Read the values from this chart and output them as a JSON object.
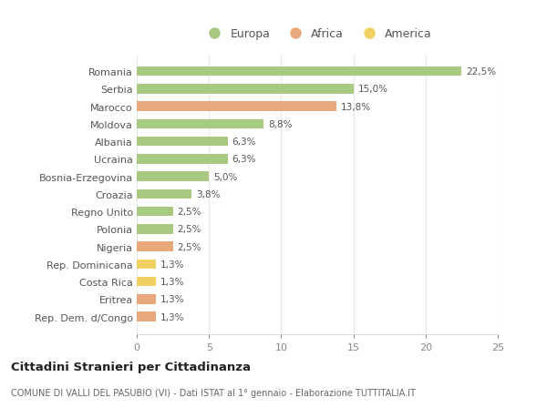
{
  "countries": [
    "Romania",
    "Serbia",
    "Marocco",
    "Moldova",
    "Albania",
    "Ucraina",
    "Bosnia-Erzegovina",
    "Croazia",
    "Regno Unito",
    "Polonia",
    "Nigeria",
    "Rep. Dominicana",
    "Costa Rica",
    "Eritrea",
    "Rep. Dem. d/Congo"
  ],
  "values": [
    22.5,
    15.0,
    13.8,
    8.8,
    6.3,
    6.3,
    5.0,
    3.8,
    2.5,
    2.5,
    2.5,
    1.3,
    1.3,
    1.3,
    1.3
  ],
  "labels": [
    "22,5%",
    "15,0%",
    "13,8%",
    "8,8%",
    "6,3%",
    "6,3%",
    "5,0%",
    "3,8%",
    "2,5%",
    "2,5%",
    "2,5%",
    "1,3%",
    "1,3%",
    "1,3%",
    "1,3%"
  ],
  "continents": [
    "Europa",
    "Europa",
    "Africa",
    "Europa",
    "Europa",
    "Europa",
    "Europa",
    "Europa",
    "Europa",
    "Europa",
    "Africa",
    "America",
    "America",
    "Africa",
    "Africa"
  ],
  "colors": {
    "Europa": "#a8c97f",
    "Africa": "#e8a87c",
    "America": "#f0d060"
  },
  "xlim": [
    0,
    25
  ],
  "xticks": [
    0,
    5,
    10,
    15,
    20,
    25
  ],
  "title": "Cittadini Stranieri per Cittadinanza",
  "subtitle": "COMUNE DI VALLI DEL PASUBIO (VI) - Dati ISTAT al 1° gennaio - Elaborazione TUTTITALIA.IT",
  "background_color": "#ffffff",
  "grid_color": "#e8e8e8"
}
